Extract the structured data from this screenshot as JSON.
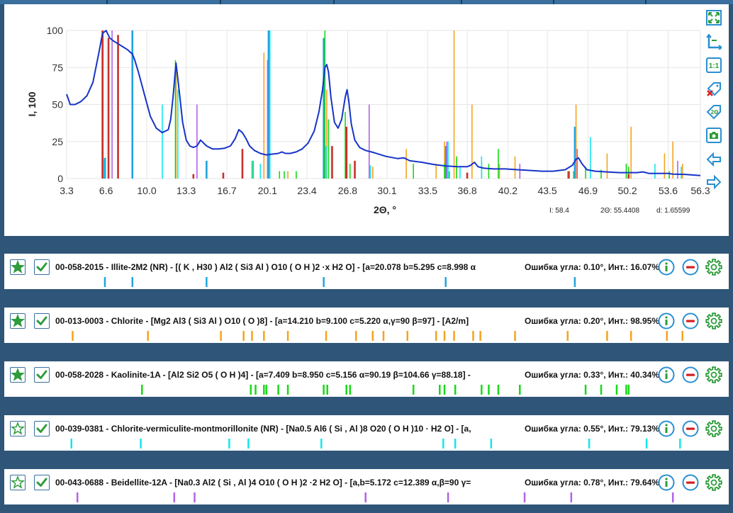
{
  "colors": {
    "pattern": "#1634c8",
    "illite": "#1fa3e0",
    "chlorite": "#f5a31f",
    "kaolinite": "#16d916",
    "cvm": "#13e6f0",
    "beidellite": "#b163e6",
    "red": "#c8302a",
    "tool": "#2a8fd1",
    "accent": "#2e9c3b"
  },
  "chart_data": {
    "type": "line",
    "xlabel": "2Θ, °",
    "ylabel": "I, 100",
    "xlim": [
      3.3,
      56.3
    ],
    "ylim": [
      0,
      100
    ],
    "xticks": [
      "3.3",
      "6.6",
      "10.0",
      "13.3",
      "16.7",
      "20.1",
      "23.4",
      "26.8",
      "30.1",
      "33.5",
      "36.8",
      "40.2",
      "43.5",
      "46.9",
      "50.2",
      "53.6",
      "56.3"
    ],
    "xtick_values": [
      3.3,
      6.6,
      10.0,
      13.3,
      16.7,
      20.1,
      23.4,
      26.8,
      30.1,
      33.5,
      36.8,
      40.2,
      43.5,
      46.9,
      50.2,
      53.6,
      56.3
    ],
    "yticks": [
      0,
      25,
      50,
      75,
      100
    ],
    "grid": true,
    "series": [
      {
        "kind": "curve",
        "color_key": "pattern",
        "x": [
          3.3,
          3.6,
          4.0,
          4.5,
          5.0,
          5.5,
          6.0,
          6.3,
          6.6,
          6.9,
          7.2,
          7.6,
          8.0,
          8.4,
          8.8,
          9.0,
          9.3,
          9.8,
          10.3,
          10.8,
          11.3,
          11.8,
          12.0,
          12.2,
          12.45,
          12.7,
          13.0,
          13.3,
          13.6,
          13.9,
          14.2,
          14.5,
          15.0,
          15.5,
          16.0,
          16.5,
          17.0,
          17.4,
          17.7,
          18.0,
          18.3,
          18.6,
          19.0,
          19.5,
          20.0,
          20.5,
          21.0,
          21.3,
          21.6,
          22.0,
          22.5,
          23.0,
          23.5,
          24.0,
          24.4,
          24.7,
          24.9,
          25.05,
          25.2,
          25.4,
          25.7,
          26.0,
          26.3,
          26.6,
          26.75,
          26.9,
          27.1,
          27.4,
          27.8,
          28.3,
          29.0,
          30.0,
          31.0,
          31.5,
          32.0,
          33.0,
          34.0,
          35.0,
          36.0,
          36.8,
          37.1,
          37.4,
          37.7,
          38.2,
          39.0,
          40.0,
          41.0,
          42.0,
          43.0,
          44.0,
          45.0,
          45.6,
          45.9,
          46.1,
          46.4,
          46.8,
          47.5,
          48.5,
          49.5,
          50.0,
          50.5,
          51.0,
          51.5,
          52.0,
          53.0,
          53.6,
          54.0,
          55.0,
          56.3
        ],
        "y": [
          57,
          50,
          50,
          52,
          56,
          65,
          85,
          98,
          100,
          95,
          93,
          91,
          89,
          87,
          84,
          80,
          72,
          57,
          42,
          34,
          31,
          33,
          40,
          55,
          78,
          60,
          38,
          26,
          22,
          21,
          22,
          26,
          22,
          20,
          20,
          20.5,
          22,
          27,
          33,
          31,
          27,
          22,
          19,
          17,
          16,
          16.5,
          17,
          18,
          17,
          17,
          18,
          20,
          24,
          32,
          45,
          60,
          75,
          77,
          72,
          55,
          38,
          34,
          40,
          55,
          60,
          52,
          37,
          26,
          21,
          19,
          17.5,
          15,
          13.5,
          14,
          12,
          11,
          9.5,
          8.5,
          8,
          8,
          9,
          11,
          8,
          7,
          6.5,
          6.5,
          6,
          5.5,
          5,
          5,
          6,
          9,
          13,
          14,
          10,
          6,
          5,
          4.5,
          4,
          4,
          4,
          4,
          4.5,
          3.5,
          3.5,
          3.5,
          3,
          2.8,
          2
        ]
      },
      {
        "kind": "sticks",
        "color_key": "illite",
        "x": [
          6.5,
          8.8,
          15.0,
          20.2,
          24.8,
          35.0,
          45.8
        ],
        "y": [
          14,
          100,
          12,
          100,
          95,
          22,
          35
        ]
      },
      {
        "kind": "sticks",
        "color_key": "chlorite",
        "x": [
          6.35,
          12.45,
          18.8,
          19.8,
          21.8,
          25.05,
          28.9,
          31.7,
          34.2,
          34.9,
          35.7,
          37.2,
          39.5,
          40.8,
          45.2,
          45.9,
          48.5,
          50.5,
          53.3,
          54.0,
          54.8
        ],
        "y": [
          100,
          75,
          10,
          85,
          5,
          60,
          8,
          20,
          10,
          25,
          100,
          50,
          10,
          15,
          5,
          50,
          17,
          35,
          17,
          25,
          10
        ],
        "thin": true
      },
      {
        "kind": "sticks",
        "color_key": "kaolinite",
        "x": [
          12.4,
          18.9,
          20.1,
          21.1,
          21.5,
          22.5,
          24.9,
          25.2,
          26.6,
          27.0,
          32.3,
          34.9,
          35.3,
          35.9,
          38.0,
          38.6,
          39.4,
          41.2,
          45.7,
          46.7,
          48.0,
          50.1,
          50.3,
          53.7
        ],
        "y": [
          80,
          12,
          12,
          5,
          5,
          5,
          100,
          40,
          45,
          10,
          10,
          10,
          5,
          15,
          12,
          10,
          20,
          5,
          5,
          8,
          6,
          10,
          8,
          5
        ],
        "thin": true
      },
      {
        "kind": "sticks",
        "color_key": "cvm",
        "x": [
          6.4,
          11.3,
          12.6,
          18.8,
          19.5,
          20.3,
          25.0,
          28.7,
          35.2,
          36.2,
          38.0,
          47.1,
          52.5,
          54.7
        ],
        "y": [
          12,
          50,
          60,
          12,
          10,
          100,
          22,
          9,
          25,
          8,
          15,
          28,
          10,
          8
        ],
        "thin": true
      },
      {
        "kind": "sticks",
        "color_key": "beidellite",
        "x": [
          7.1,
          14.2,
          20.1,
          28.6,
          35.1,
          41.2,
          46.0,
          54.4
        ],
        "y": [
          100,
          50,
          80,
          50,
          25,
          10,
          20,
          12
        ],
        "thin": true
      },
      {
        "kind": "sticks",
        "color_key": "red",
        "x": [
          6.3,
          6.8,
          7.6,
          13.9,
          16.4,
          18.0,
          25.5,
          26.7,
          27.4,
          36.8,
          45.3,
          50.3
        ],
        "y": [
          100,
          95,
          97,
          3,
          4,
          20,
          22,
          35,
          12,
          4,
          5,
          3
        ]
      }
    ]
  },
  "readout": {
    "i": "I: 58.4",
    "theta": "2Θ: 55.4408",
    "d": "d: 1.65599"
  },
  "toolbar": [
    "fit-screen-icon",
    "axes-icon",
    "one-to-one-icon",
    "remove-labels-icon",
    "label-2theta-icon",
    "camera-icon",
    "arrow-left-icon",
    "arrow-right-icon"
  ],
  "phases": [
    {
      "id": "illite",
      "starred": true,
      "text": "00-058-2015 - Illite-2M2 (NR) - [( K , H30 ) Al2 ( Si3 Al ) O10 ( O H )2 ·x H2 O] - [a=20.078 b=5.295 c=8.998 α",
      "error": "Ошибка угла: 0.10°, Инт.: 16.07%",
      "color_key": "illite",
      "tick_x": [
        6.5,
        8.8,
        15.0,
        24.8,
        35.0,
        45.8
      ]
    },
    {
      "id": "chlorite",
      "starred": true,
      "text": "00-013-0003 - Chlorite - [Mg2 Al3 ( Si3 Al ) O10 ( O )8] - [a=14.210 b=9.100 c=5.220 α,γ=90 β=97] - [A2/m] ",
      "error": "Ошибка угла: 0.20°, Инт.: 98.95%",
      "color_key": "chlorite",
      "tick_x": [
        3.8,
        10.1,
        16.2,
        18.1,
        18.8,
        19.8,
        21.8,
        25.0,
        27.5,
        28.9,
        29.8,
        31.8,
        34.2,
        34.9,
        35.7,
        37.3,
        37.9,
        40.8,
        45.2,
        48.5,
        50.5,
        53.5,
        54.8
      ]
    },
    {
      "id": "kaolinite",
      "starred": true,
      "text": "00-058-2028 - Kaolinite-1A - [Al2 Si2 O5 ( O H )4] - [a=7.409 b=8.950 c=5.156 α=90.19 β=104.66 γ=88.18] - ",
      "error": "Ошибка угла: 0.33°, Инт.: 40.34%",
      "color_key": "kaolinite",
      "tick_x": [
        9.6,
        18.7,
        19.1,
        19.8,
        20.0,
        21.0,
        21.8,
        24.8,
        25.1,
        26.7,
        27.0,
        32.3,
        34.5,
        34.9,
        35.8,
        38.0,
        38.6,
        39.4,
        41.2,
        46.7,
        48.0,
        49.3,
        50.1,
        50.3
      ]
    },
    {
      "id": "cvm",
      "starred": false,
      "text": "00-039-0381 - Chlorite-vermiculite-montmorillonite (NR) - [Na0.5 Al6 ( Si , Al )8 O20 ( O H )10 · H2 O] - [a,",
      "error": "Ошибка угла: 0.55°, Инт.: 79.13%",
      "color_key": "cvm",
      "tick_x": [
        3.7,
        9.5,
        16.9,
        18.5,
        24.6,
        34.8,
        35.8,
        38.8,
        47.0,
        51.8,
        54.6
      ]
    },
    {
      "id": "beidellite",
      "starred": false,
      "text": "00-043-0688 - Beidellite-12A - [Na0.3 Al2 ( Si , Al )4 O10 ( O H )2 ·2 H2 O] - [a,b=5.172 c=12.389 α,β=90 γ=",
      "error": "Ошибка угла: 0.78°, Инт.: 79.64%",
      "color_key": "beidellite",
      "tick_x": [
        4.2,
        12.3,
        14.0,
        28.3,
        35.2,
        41.6,
        45.5,
        54.0
      ]
    }
  ]
}
